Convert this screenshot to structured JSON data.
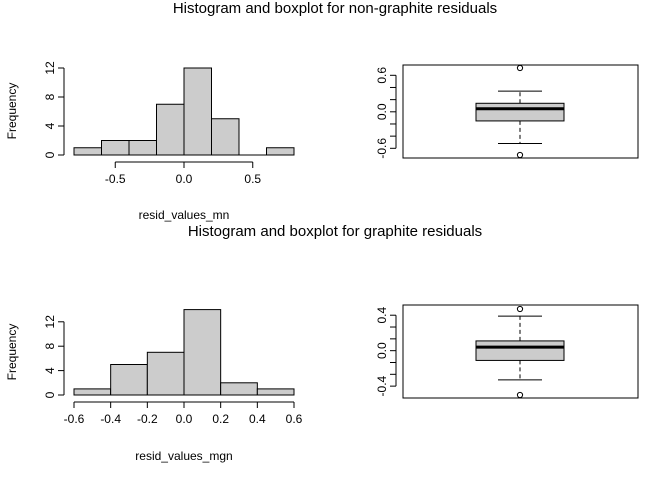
{
  "chart_data": [
    {
      "type": "histogram",
      "title": "Histogram and boxplot for non-graphite residuals",
      "xlabel": "resid_values_mn",
      "ylabel": "Frequency",
      "bins": [
        {
          "from": -0.8,
          "to": -0.6,
          "count": 1
        },
        {
          "from": -0.6,
          "to": -0.4,
          "count": 2
        },
        {
          "from": -0.4,
          "to": -0.2,
          "count": 2
        },
        {
          "from": -0.2,
          "to": 0.0,
          "count": 7
        },
        {
          "from": 0.0,
          "to": 0.2,
          "count": 12
        },
        {
          "from": 0.2,
          "to": 0.4,
          "count": 5
        },
        {
          "from": 0.4,
          "to": 0.6,
          "count": 0
        },
        {
          "from": 0.6,
          "to": 0.8,
          "count": 1
        }
      ],
      "xticks": [
        "-0.5",
        "0.0",
        "0.5"
      ],
      "xtick_values": [
        -0.5,
        0.0,
        0.5
      ],
      "xlim": [
        -0.8,
        0.8
      ],
      "yticks": [
        "0",
        "4",
        "8",
        "12"
      ],
      "ylim": [
        0,
        12
      ]
    },
    {
      "type": "boxplot",
      "whisker_low": -0.52,
      "q1": -0.15,
      "median": 0.05,
      "q3": 0.14,
      "whisker_high": 0.34,
      "outliers": [
        -0.71,
        0.72
      ],
      "yticks": [
        "-0.6",
        "0.0",
        "0.6"
      ],
      "ylim": [
        -0.71,
        0.72
      ]
    },
    {
      "type": "histogram",
      "title": "Histogram and boxplot for graphite residuals",
      "xlabel": "resid_values_mgn",
      "ylabel": "Frequency",
      "bins": [
        {
          "from": -0.6,
          "to": -0.4,
          "count": 1
        },
        {
          "from": -0.4,
          "to": -0.2,
          "count": 5
        },
        {
          "from": -0.2,
          "to": 0.0,
          "count": 7
        },
        {
          "from": 0.0,
          "to": 0.2,
          "count": 14
        },
        {
          "from": 0.2,
          "to": 0.4,
          "count": 2
        },
        {
          "from": 0.4,
          "to": 0.6,
          "count": 1
        }
      ],
      "xticks": [
        "-0.6",
        "-0.4",
        "-0.2",
        "0.0",
        "0.2",
        "0.4",
        "0.6"
      ],
      "xtick_values": [
        -0.6,
        -0.4,
        -0.2,
        0.0,
        0.2,
        0.4,
        0.6
      ],
      "xlim": [
        -0.6,
        0.6
      ],
      "yticks": [
        "0",
        "4",
        "8",
        "12"
      ],
      "ylim": [
        0,
        14
      ]
    },
    {
      "type": "boxplot",
      "whisker_low": -0.33,
      "q1": -0.11,
      "median": 0.04,
      "q3": 0.11,
      "whisker_high": 0.39,
      "outliers": [
        -0.5,
        0.47
      ],
      "yticks": [
        "-0.4",
        "0.0",
        "0.4"
      ],
      "ylim": [
        -0.5,
        0.47
      ]
    }
  ]
}
